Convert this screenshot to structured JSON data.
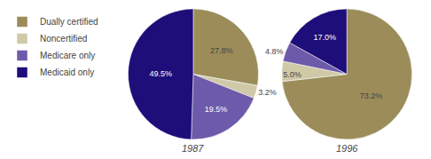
{
  "chart_data": [
    {
      "type": "pie",
      "title": "1987",
      "categories": [
        "Dually certified",
        "Noncertified",
        "Medicare only",
        "Medicaid only"
      ],
      "values": [
        27.8,
        3.2,
        19.5,
        49.5
      ],
      "value_labels": [
        "27.8%",
        "3.2%",
        "19.5%",
        "49.5%"
      ],
      "colors": [
        "#9b8c5a",
        "#cfc9a8",
        "#6e5aaa",
        "#1e0e7a"
      ],
      "data_labels": true,
      "legend": "upper left"
    },
    {
      "type": "pie",
      "title": "1996",
      "categories": [
        "Dually certified",
        "Noncertified",
        "Medicare only",
        "Medicaid only"
      ],
      "values": [
        73.2,
        5.0,
        4.8,
        17.0
      ],
      "value_labels": [
        "73.2%",
        "5.0%",
        "4.8%",
        "17.0%"
      ],
      "colors": [
        "#9b8c5a",
        "#cfc9a8",
        "#6e5aaa",
        "#1e0e7a"
      ],
      "data_labels": true,
      "legend": "upper left"
    }
  ]
}
